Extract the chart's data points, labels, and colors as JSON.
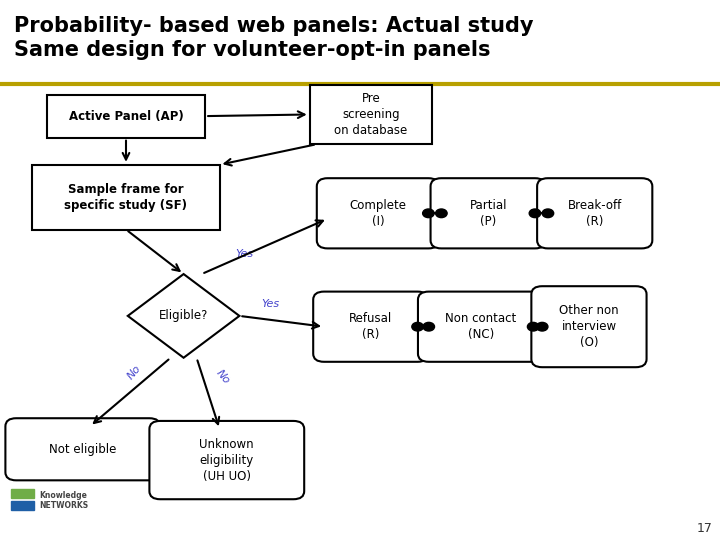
{
  "title_line1": "Probability- based web panels: Actual study",
  "title_line2": "Same design for volunteer-opt-in panels",
  "title_color": "#000000",
  "separator_color": "#b8a000",
  "bg_color": "#ffffff",
  "page_number": "17",
  "arrow_color": "#000000",
  "label_color_yes_no": "#4444cc"
}
